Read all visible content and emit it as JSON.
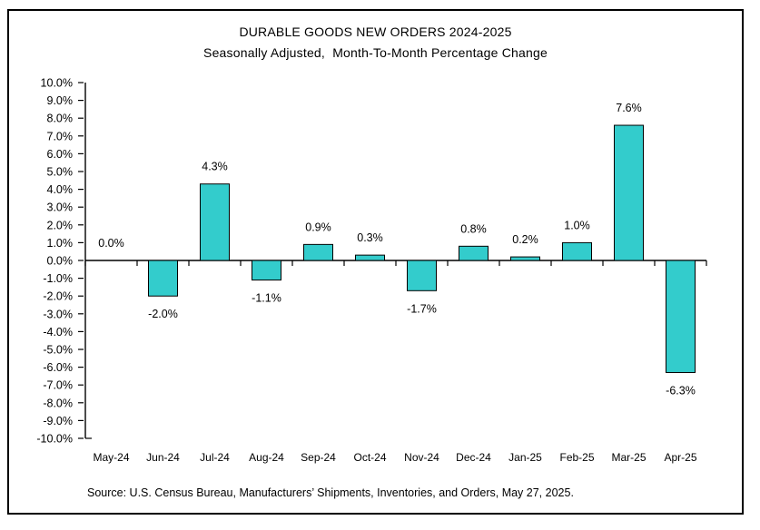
{
  "chart_data": {
    "type": "bar",
    "title": "DURABLE GOODS NEW ORDERS 2024-2025",
    "subtitle": "Seasonally Adjusted,  Month-To-Month Percentage Change",
    "source": "Source: U.S. Census Bureau, Manufacturers’ Shipments, Inventories, and Orders, May 27, 2025.",
    "xlabel": "",
    "ylabel": "",
    "categories": [
      "May-24",
      "Jun-24",
      "Jul-24",
      "Aug-24",
      "Sep-24",
      "Oct-24",
      "Nov-24",
      "Dec-24",
      "Jan-25",
      "Feb-25",
      "Mar-25",
      "Apr-25"
    ],
    "values": [
      0.0,
      -2.0,
      4.3,
      -1.1,
      0.9,
      0.3,
      -1.7,
      0.8,
      0.2,
      1.0,
      7.6,
      -6.3
    ],
    "value_labels": [
      "0.0%",
      "-2.0%",
      "4.3%",
      "-1.1%",
      "0.9%",
      "0.3%",
      "-1.7%",
      "0.8%",
      "0.2%",
      "1.0%",
      "7.6%",
      "-6.3%"
    ],
    "ylim": [
      -10,
      10
    ],
    "y_ticks": {
      "max": 10,
      "step": 1,
      "labels": [
        "10.0%",
        "9.0%",
        "8.0%",
        "7.0%",
        "6.0%",
        "5.0%",
        "4.0%",
        "3.0%",
        "2.0%",
        "1.0%",
        "0.0%",
        "-1.0%",
        "-2.0%",
        "-3.0%",
        "-4.0%",
        "-5.0%",
        "-6.0%",
        "-7.0%",
        "-8.0%",
        "-9.0%",
        "-10.0%"
      ]
    },
    "grid": false,
    "legend": null,
    "bar_color": "#33CCCC",
    "bar_border_color": "#000000",
    "axis_color": "#000000",
    "text_color": "#000000"
  }
}
